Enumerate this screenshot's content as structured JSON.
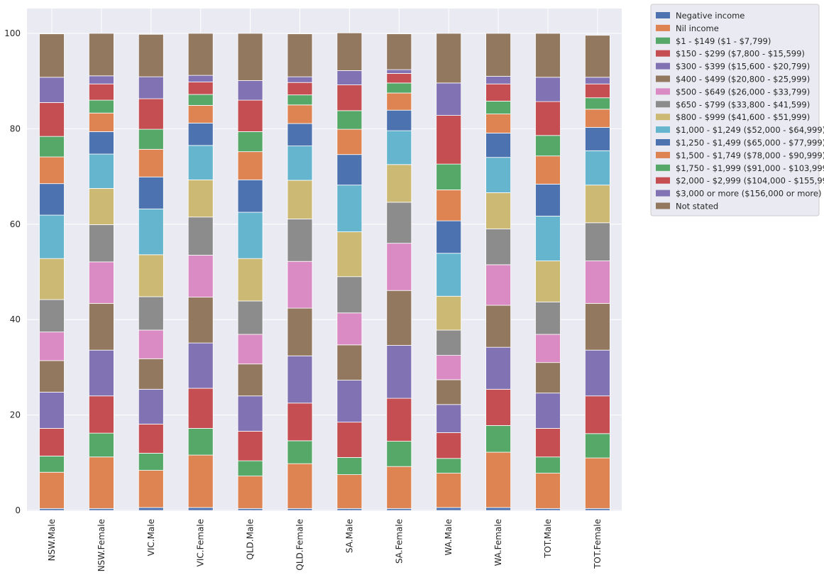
{
  "chart_data": {
    "type": "bar",
    "stacked": true,
    "title": "",
    "xlabel": "",
    "ylabel": "",
    "ylim": [
      0,
      100
    ],
    "yticks": [
      0,
      20,
      40,
      60,
      80,
      100
    ],
    "grid": true,
    "legend_position": "outside-top-right",
    "categories": [
      "NSW.Male",
      "NSW.Female",
      "VIC.Male",
      "VIC.Female",
      "QLD.Male",
      "QLD.Female",
      "SA.Male",
      "SA.Female",
      "WA.Male",
      "WA.Female",
      "TOT.Male",
      "TOT.Female"
    ],
    "series": [
      {
        "name": "Negative income",
        "color": "#4c72b0",
        "values": [
          0.4,
          0.4,
          0.6,
          0.6,
          0.4,
          0.4,
          0.4,
          0.4,
          0.6,
          0.6,
          0.4,
          0.4
        ]
      },
      {
        "name": "Nil income",
        "color": "#dd8452",
        "values": [
          7.6,
          10.8,
          7.8,
          11.0,
          6.8,
          9.4,
          7.1,
          8.8,
          7.2,
          11.6,
          7.4,
          10.6
        ]
      },
      {
        "name": "$1 - $149 ($1 - $7,799)",
        "color": "#55a868",
        "values": [
          3.4,
          5.0,
          3.6,
          5.6,
          3.2,
          4.8,
          3.6,
          5.3,
          3.1,
          5.6,
          3.4,
          5.1
        ]
      },
      {
        "name": "$150 - $299 ($7,800 - $15,599)",
        "color": "#c44e52",
        "values": [
          5.8,
          7.8,
          6.1,
          8.4,
          6.2,
          7.9,
          7.4,
          9.0,
          5.4,
          7.6,
          6.0,
          7.9
        ]
      },
      {
        "name": "$300 - $399 ($15,600 - $20,799)",
        "color": "#8172b3",
        "values": [
          7.6,
          9.6,
          7.3,
          9.5,
          7.4,
          9.9,
          8.8,
          11.1,
          5.9,
          8.8,
          7.4,
          9.6
        ]
      },
      {
        "name": "$400 - $499 ($20,800 - $25,999)",
        "color": "#937860",
        "values": [
          6.6,
          9.8,
          6.4,
          9.6,
          6.7,
          10.0,
          7.4,
          11.5,
          5.2,
          8.8,
          6.4,
          9.8
        ]
      },
      {
        "name": "$500 - $649 ($26,000 - $33,799)",
        "color": "#da8bc3",
        "values": [
          6.0,
          8.7,
          6.0,
          8.8,
          6.2,
          9.8,
          6.7,
          9.9,
          5.1,
          8.5,
          5.9,
          8.9
        ]
      },
      {
        "name": "$650 - $799 ($33,800 - $41,599)",
        "color": "#8c8c8c",
        "values": [
          6.8,
          7.8,
          7.0,
          8.0,
          7.0,
          8.9,
          7.6,
          8.6,
          5.3,
          7.5,
          6.8,
          8.0
        ]
      },
      {
        "name": "$800 - $999 ($41,600 - $51,999)",
        "color": "#ccb974",
        "values": [
          8.6,
          7.6,
          8.8,
          7.8,
          8.9,
          8.1,
          9.4,
          7.9,
          7.1,
          7.6,
          8.6,
          7.9
        ]
      },
      {
        "name": "$1,000 - $1,249 ($52,000 - $64,999)",
        "color": "#64b5cd",
        "values": [
          9.1,
          7.2,
          9.6,
          7.2,
          9.7,
          7.2,
          9.8,
          7.1,
          9.0,
          7.4,
          9.4,
          7.2
        ]
      },
      {
        "name": "$1,250 - $1,499 ($65,000 - $77,999)",
        "color": "#4c72b0",
        "values": [
          6.6,
          4.7,
          6.7,
          4.7,
          6.8,
          4.7,
          6.4,
          4.3,
          6.8,
          5.1,
          6.7,
          4.9
        ]
      },
      {
        "name": "$1,500 - $1,749 ($78,000 - $90,999)",
        "color": "#dd8452",
        "values": [
          5.6,
          3.9,
          5.8,
          3.7,
          5.9,
          3.9,
          5.3,
          3.6,
          6.5,
          4.0,
          5.9,
          3.8
        ]
      },
      {
        "name": "$1,750 - $1,999 ($91,000 - $103,999)",
        "color": "#55a868",
        "values": [
          4.3,
          2.7,
          4.2,
          2.3,
          4.2,
          2.1,
          3.9,
          2.1,
          5.4,
          2.7,
          4.3,
          2.4
        ]
      },
      {
        "name": "$2,000 - $2,999 ($104,000 - $155,999)",
        "color": "#c44e52",
        "values": [
          7.1,
          3.4,
          6.4,
          2.6,
          6.6,
          2.6,
          5.4,
          2.0,
          10.2,
          3.6,
          7.1,
          2.9
        ]
      },
      {
        "name": "$3,000 or more ($156,000 or more)",
        "color": "#8172b3",
        "values": [
          5.3,
          1.7,
          4.6,
          1.4,
          4.1,
          1.2,
          3.0,
          0.8,
          6.8,
          1.6,
          5.1,
          1.4
        ]
      },
      {
        "name": "Not stated",
        "color": "#937860",
        "values": [
          9.1,
          8.9,
          8.9,
          8.8,
          9.9,
          9.0,
          7.9,
          7.5,
          10.4,
          9.0,
          9.2,
          8.8
        ]
      }
    ]
  }
}
